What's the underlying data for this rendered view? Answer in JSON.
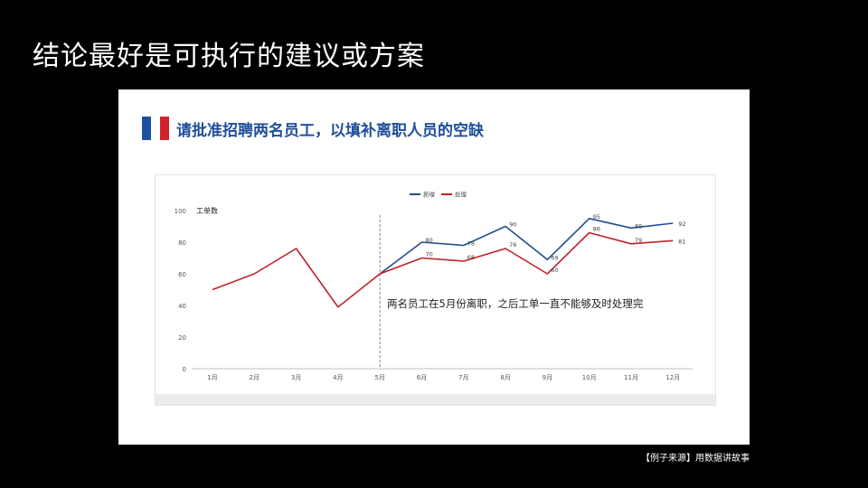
{
  "slide": {
    "title": "结论最好是可执行的建议或方案",
    "source": "【例子来源】用数据讲故事"
  },
  "panel": {
    "heading": "请批准招聘两名员工，以填补离职人员的空缺",
    "flag_colors": [
      "#1f4fa0",
      "#ffffff",
      "#d4202a"
    ]
  },
  "colors": {
    "new_series": "#1f4e8f",
    "processed_series": "#c0202a",
    "marker_line": "#888888",
    "axis": "#bfbfbf"
  },
  "chart_data": {
    "type": "line",
    "ylabel": "工单数",
    "ylim": [
      0,
      100
    ],
    "yticks": [
      0,
      20,
      40,
      60,
      80,
      100
    ],
    "categories": [
      "1月",
      "2月",
      "3月",
      "4月",
      "5月",
      "6月",
      "7月",
      "8月",
      "9月",
      "10月",
      "11月",
      "12月"
    ],
    "series": [
      {
        "name": "新增",
        "key": "new",
        "values": [
          null,
          null,
          null,
          null,
          60,
          80,
          78,
          90,
          69,
          95,
          89,
          92
        ]
      },
      {
        "name": "处理",
        "key": "processed",
        "values": [
          50,
          60,
          76,
          39,
          60,
          70,
          68,
          76,
          60,
          86,
          79,
          81
        ]
      }
    ],
    "data_labels": {
      "new": [
        null,
        null,
        null,
        null,
        null,
        80,
        78,
        90,
        69,
        95,
        89,
        92
      ],
      "processed": [
        null,
        null,
        null,
        null,
        null,
        70,
        68,
        76,
        60,
        86,
        79,
        81
      ]
    },
    "annotation": {
      "category": "5月",
      "text": "两名员工在5月份离职，之后工单一直不能够及时处理完"
    },
    "legend": "top-center",
    "grid": false
  }
}
